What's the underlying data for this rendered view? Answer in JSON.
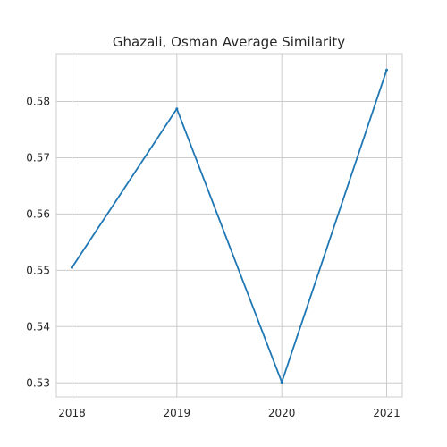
{
  "chart_data": {
    "type": "line",
    "title": "Ghazali, Osman Average Similarity",
    "xlabel": "",
    "ylabel": "",
    "x": [
      "2018",
      "2019",
      "2020",
      "2021"
    ],
    "series": [
      {
        "values": [
          0.5505,
          0.5787,
          0.5301,
          0.5856
        ],
        "color": "#1f77b4"
      }
    ],
    "yticks": [
      0.53,
      0.54,
      0.55,
      0.56,
      0.57,
      0.58
    ],
    "ytick_labels": [
      "0.53",
      "0.54",
      "0.55",
      "0.56",
      "0.57",
      "0.58"
    ],
    "xticks": [
      "2018",
      "2019",
      "2020",
      "2021"
    ],
    "ylim": [
      0.5275,
      0.5885
    ],
    "grid": true,
    "style": "whitegrid",
    "frame_color": "#cccccc",
    "grid_color": "#cccccc"
  }
}
